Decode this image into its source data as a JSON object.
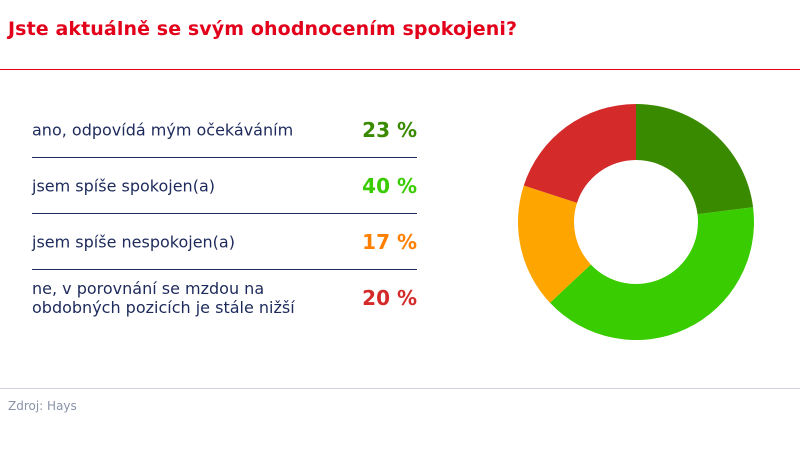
{
  "title": "Jste aktuálně se svým ohodnocením spokojeni?",
  "source": "Zdroj: Hays",
  "chart_data": {
    "type": "pie",
    "title": "Jste aktuálně se svým ohodnocením spokojeni?",
    "categories": [
      "ano, odpovídá mým očekáváním",
      "jsem spíše spokojen(a)",
      "jsem spíše nespokojen(a)",
      "ne, v porovnání se mzdou na obdobných pozicích je stále nižší"
    ],
    "values": [
      23,
      40,
      17,
      20
    ],
    "value_labels": [
      "23 %",
      "40 %",
      "17 %",
      "20 %"
    ],
    "colors": [
      "#3a8a00",
      "#39cc00",
      "#ffa500",
      "#d42a2a"
    ],
    "value_text_colors": [
      "#3a8a00",
      "#39cc00",
      "#ff7f00",
      "#d42a2a"
    ],
    "donut": true
  }
}
